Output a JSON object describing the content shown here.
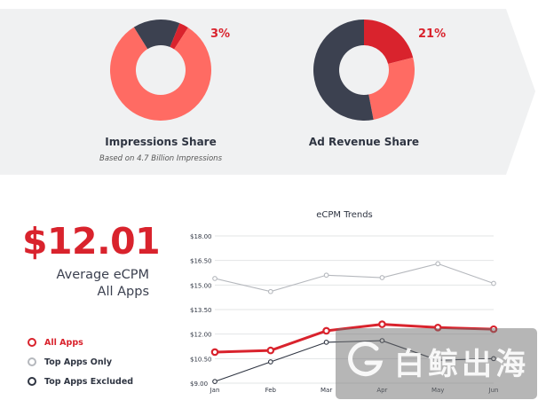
{
  "top_panel": {
    "impressions": {
      "title": "Impressions Share",
      "subtitle": "Based on 4.7 Billion Impressions",
      "highlight_label": "3%"
    },
    "revenue": {
      "title": "Ad Revenue Share",
      "highlight_label": "21%"
    }
  },
  "kpi": {
    "value": "$12.01",
    "caption_line1": "Average eCPM",
    "caption_line2": "All Apps"
  },
  "legend": {
    "items": [
      {
        "label": "All Apps",
        "color": "#d9232d"
      },
      {
        "label": "Top Apps Only",
        "color": "#b5b8bd"
      },
      {
        "label": "Top Apps Excluded",
        "color": "#2f3542"
      }
    ]
  },
  "watermark": {
    "text": "白鲸出海",
    "icon": "g-logo-icon"
  },
  "colors": {
    "red": "#d9232d",
    "salmon": "#ff6b63",
    "navy": "#3c4150",
    "light_gray": "#b5b8bd",
    "panel_bg": "#f0f1f2"
  },
  "chart_data": [
    {
      "type": "pie",
      "title": "Impressions Share",
      "subtitle": "Based on 4.7 Billion Impressions",
      "slices": [
        {
          "name": "Top Apps Excluded",
          "value": 15,
          "color": "#3c4150"
        },
        {
          "name": "Top Apps Only",
          "value": 3,
          "color": "#d9232d"
        },
        {
          "name": "",
          "value": 82,
          "color": "#ff6b63"
        }
      ],
      "labels": [
        "3%"
      ]
    },
    {
      "type": "pie",
      "title": "Ad Revenue Share",
      "slices": [
        {
          "name": "Top Apps Only",
          "value": 21,
          "color": "#d9232d"
        },
        {
          "name": "",
          "value": 26,
          "color": "#ff6b63"
        },
        {
          "name": "Top Apps Excluded",
          "value": 53,
          "color": "#3c4150"
        }
      ],
      "labels": [
        "21%"
      ]
    },
    {
      "type": "line",
      "title": "eCPM Trends",
      "categories": [
        "Jan",
        "Feb",
        "Mar",
        "Apr",
        "May",
        "Jun"
      ],
      "y_ticks": [
        "$9.00",
        "$10.50",
        "$12.00",
        "$13.50",
        "$15.00",
        "$16.50",
        "$18.00"
      ],
      "ylim": [
        9,
        18
      ],
      "grid": true,
      "series": [
        {
          "name": "Top Apps Only",
          "color": "#b5b8bd",
          "values": [
            15.4,
            14.6,
            15.6,
            15.45,
            16.3,
            15.1
          ]
        },
        {
          "name": "Top Apps Excluded",
          "color": "#2f3542",
          "values": [
            9.1,
            10.3,
            11.5,
            11.6,
            10.4,
            10.5
          ]
        },
        {
          "name": "All Apps",
          "color": "#d9232d",
          "values": [
            10.9,
            11.0,
            12.2,
            12.6,
            12.4,
            12.3
          ]
        }
      ]
    }
  ]
}
